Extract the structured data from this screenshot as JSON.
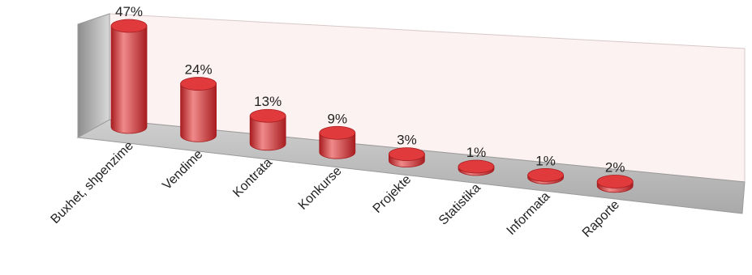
{
  "chart_data": {
    "type": "bar",
    "style": "3d-cylinder",
    "title": "",
    "xlabel": "",
    "ylabel": "",
    "categories": [
      "Buxhet, shpenzime",
      "Vendime",
      "Kontrata",
      "Konkurse",
      "Projekte",
      "Statistika",
      "Informata",
      "Raporte"
    ],
    "series": [
      {
        "values": [
          47,
          24,
          13,
          9,
          3,
          1,
          1,
          2
        ]
      }
    ],
    "value_labels": [
      "47%",
      "24%",
      "13%",
      "9%",
      "3%",
      "1%",
      "1%",
      "2%"
    ],
    "unit": "%",
    "ylim": [
      0,
      50
    ],
    "grid": false,
    "legend": "none",
    "colors": {
      "bar": "#e03a3c",
      "bar_dark": "#a81d20",
      "bar_light": "#f08a8a",
      "floor": "#bdbdbd",
      "wall": "#fdf2f2",
      "left_wall": "#b3b3b3"
    }
  }
}
